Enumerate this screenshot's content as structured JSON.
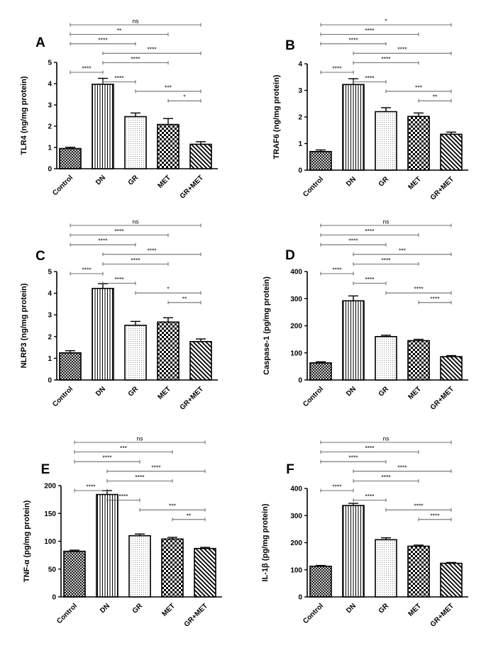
{
  "colors": {
    "ink": "#000000",
    "background": "#ffffff",
    "bracket": "#444444"
  },
  "chart_data": [
    {
      "type": "bar",
      "panel": "A",
      "ylabel": "TLR4 (ng/mg protein)",
      "categories": [
        "Control",
        "DN",
        "GR",
        "MET",
        "GR+MET"
      ],
      "patterns": [
        "crosshatch",
        "vertical-lines",
        "dots",
        "checker",
        "diagonal"
      ],
      "values": [
        0.95,
        3.97,
        2.45,
        2.08,
        1.15
      ],
      "errors": [
        0.06,
        0.28,
        0.17,
        0.28,
        0.12
      ],
      "ylim": [
        0,
        5
      ],
      "yticks": [
        0,
        1,
        2,
        3,
        4,
        5
      ],
      "comparisons": [
        {
          "from": 0,
          "to": 4,
          "label": "ns"
        },
        {
          "from": 0,
          "to": 3,
          "label": "**"
        },
        {
          "from": 0,
          "to": 2,
          "label": "****"
        },
        {
          "from": 1,
          "to": 4,
          "label": "****"
        },
        {
          "from": 1,
          "to": 3,
          "label": "****"
        },
        {
          "from": 0,
          "to": 1,
          "label": "****"
        },
        {
          "from": 1,
          "to": 2,
          "label": "****"
        },
        {
          "from": 2,
          "to": 4,
          "label": "***"
        },
        {
          "from": 3,
          "to": 4,
          "label": "*"
        }
      ]
    },
    {
      "type": "bar",
      "panel": "B",
      "ylabel": "TRAF6 (ng/mg protein)",
      "categories": [
        "Control",
        "DN",
        "GR",
        "MET",
        "GR+MET"
      ],
      "patterns": [
        "crosshatch",
        "vertical-lines",
        "dots",
        "checker",
        "diagonal"
      ],
      "values": [
        0.7,
        3.22,
        2.2,
        2.02,
        1.35
      ],
      "errors": [
        0.06,
        0.22,
        0.15,
        0.13,
        0.08
      ],
      "ylim": [
        0,
        4
      ],
      "yticks": [
        0,
        1,
        2,
        3,
        4
      ],
      "comparisons": [
        {
          "from": 0,
          "to": 4,
          "label": "*"
        },
        {
          "from": 0,
          "to": 3,
          "label": "****"
        },
        {
          "from": 0,
          "to": 2,
          "label": "****"
        },
        {
          "from": 1,
          "to": 4,
          "label": "****"
        },
        {
          "from": 1,
          "to": 3,
          "label": "****"
        },
        {
          "from": 0,
          "to": 1,
          "label": "****"
        },
        {
          "from": 1,
          "to": 2,
          "label": "****"
        },
        {
          "from": 2,
          "to": 4,
          "label": "***"
        },
        {
          "from": 3,
          "to": 4,
          "label": "**"
        }
      ]
    },
    {
      "type": "bar",
      "panel": "C",
      "ylabel": "NLRP3 (ng/mg protein)",
      "categories": [
        "Control",
        "DN",
        "GR",
        "MET",
        "GR+MET"
      ],
      "patterns": [
        "crosshatch",
        "vertical-lines",
        "dots",
        "checker",
        "diagonal"
      ],
      "values": [
        1.25,
        4.22,
        2.52,
        2.67,
        1.77
      ],
      "errors": [
        0.1,
        0.22,
        0.18,
        0.2,
        0.12
      ],
      "ylim": [
        0,
        5
      ],
      "yticks": [
        0,
        1,
        2,
        3,
        4,
        5
      ],
      "comparisons": [
        {
          "from": 0,
          "to": 4,
          "label": "ns"
        },
        {
          "from": 0,
          "to": 3,
          "label": "****"
        },
        {
          "from": 0,
          "to": 2,
          "label": "****"
        },
        {
          "from": 1,
          "to": 4,
          "label": "****"
        },
        {
          "from": 1,
          "to": 3,
          "label": "****"
        },
        {
          "from": 0,
          "to": 1,
          "label": "****"
        },
        {
          "from": 1,
          "to": 2,
          "label": "****"
        },
        {
          "from": 2,
          "to": 4,
          "label": "*"
        },
        {
          "from": 3,
          "to": 4,
          "label": "**"
        }
      ]
    },
    {
      "type": "bar",
      "panel": "D",
      "ylabel": "Caspase-1 (pg/mg protein)",
      "categories": [
        "Control",
        "DN",
        "GR",
        "MET",
        "GR+MET"
      ],
      "patterns": [
        "crosshatch",
        "vertical-lines",
        "dots",
        "checker",
        "diagonal"
      ],
      "values": [
        63,
        292,
        160,
        145,
        86
      ],
      "errors": [
        4,
        18,
        5,
        5,
        4
      ],
      "ylim": [
        0,
        400
      ],
      "yticks": [
        0,
        100,
        200,
        300,
        400
      ],
      "comparisons": [
        {
          "from": 0,
          "to": 4,
          "label": "ns"
        },
        {
          "from": 0,
          "to": 3,
          "label": "****"
        },
        {
          "from": 0,
          "to": 2,
          "label": "****"
        },
        {
          "from": 1,
          "to": 4,
          "label": "***"
        },
        {
          "from": 1,
          "to": 3,
          "label": "****"
        },
        {
          "from": 0,
          "to": 1,
          "label": "****"
        },
        {
          "from": 1,
          "to": 2,
          "label": "****"
        },
        {
          "from": 2,
          "to": 4,
          "label": "****"
        },
        {
          "from": 3,
          "to": 4,
          "label": "****"
        }
      ]
    },
    {
      "type": "bar",
      "panel": "E",
      "ylabel": "TNF-α (pg/mg protein)",
      "categories": [
        "Control",
        "DN",
        "GR",
        "MET",
        "GR+MET"
      ],
      "patterns": [
        "crosshatch",
        "vertical-lines",
        "dots",
        "checker",
        "diagonal"
      ],
      "values": [
        82,
        184,
        110,
        104,
        87
      ],
      "errors": [
        2,
        7,
        3,
        3,
        2
      ],
      "ylim": [
        0,
        200
      ],
      "yticks": [
        0,
        50,
        100,
        150,
        200
      ],
      "comparisons": [
        {
          "from": 0,
          "to": 4,
          "label": "ns"
        },
        {
          "from": 0,
          "to": 3,
          "label": "***"
        },
        {
          "from": 0,
          "to": 2,
          "label": "****"
        },
        {
          "from": 1,
          "to": 4,
          "label": "****"
        },
        {
          "from": 1,
          "to": 3,
          "label": "****"
        },
        {
          "from": 0,
          "to": 1,
          "label": "****"
        },
        {
          "from": 1,
          "to": 2,
          "label": "****"
        },
        {
          "from": 2,
          "to": 4,
          "label": "***"
        },
        {
          "from": 3,
          "to": 4,
          "label": "**"
        }
      ]
    },
    {
      "type": "bar",
      "panel": "F",
      "ylabel": "IL-1β (pg/mg protein)",
      "categories": [
        "Control",
        "DN",
        "GR",
        "MET",
        "GR+MET"
      ],
      "patterns": [
        "crosshatch",
        "vertical-lines",
        "dots",
        "checker",
        "diagonal"
      ],
      "values": [
        113,
        337,
        211,
        187,
        124
      ],
      "errors": [
        3,
        8,
        7,
        4,
        3
      ],
      "ylim": [
        0,
        400
      ],
      "yticks": [
        0,
        100,
        200,
        300,
        400
      ],
      "comparisons": [
        {
          "from": 0,
          "to": 4,
          "label": "ns"
        },
        {
          "from": 0,
          "to": 3,
          "label": "****"
        },
        {
          "from": 0,
          "to": 2,
          "label": "****"
        },
        {
          "from": 1,
          "to": 4,
          "label": "****"
        },
        {
          "from": 1,
          "to": 3,
          "label": "****"
        },
        {
          "from": 0,
          "to": 1,
          "label": "****"
        },
        {
          "from": 1,
          "to": 2,
          "label": "****"
        },
        {
          "from": 2,
          "to": 4,
          "label": "****"
        },
        {
          "from": 3,
          "to": 4,
          "label": "****"
        }
      ]
    }
  ]
}
